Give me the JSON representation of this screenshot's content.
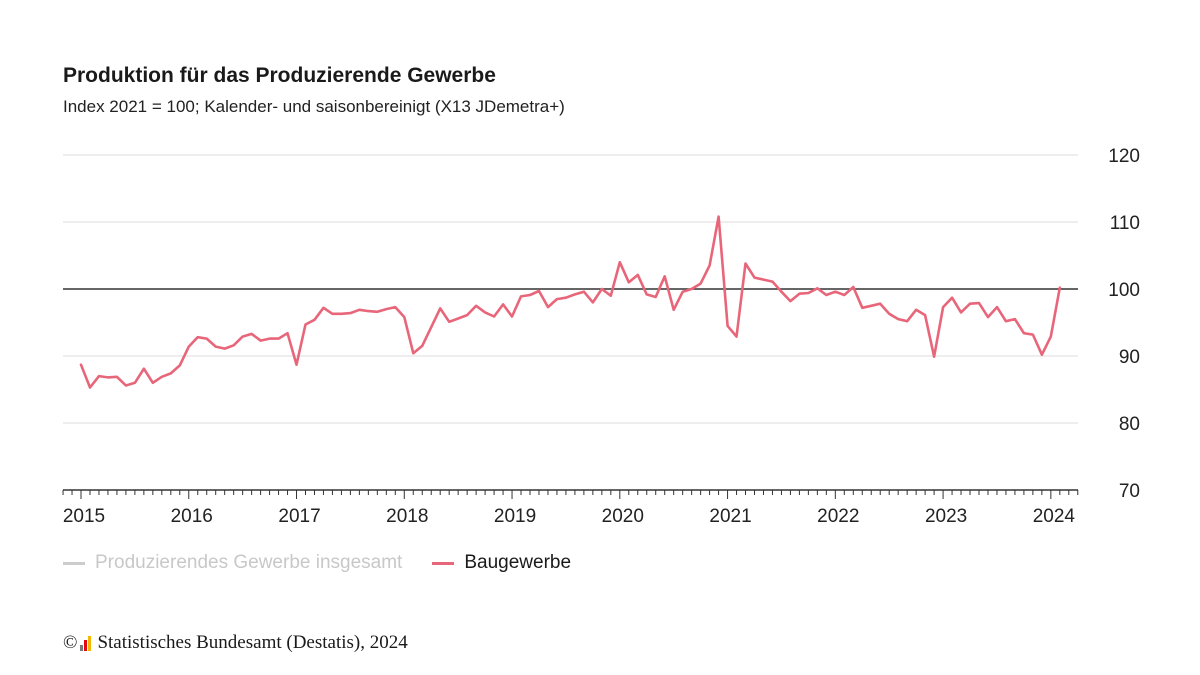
{
  "title": "Produktion für das Produzierende Gewerbe",
  "subtitle": "Index 2021 = 100; Kalender- und saisonbereinigt (X13 JDemetra+)",
  "legend": [
    {
      "label": "Produzierendes Gewerbe insgesamt",
      "color": "#cccccc",
      "state": "inactive"
    },
    {
      "label": "Baugewerbe",
      "color": "#e8667a",
      "state": "active"
    }
  ],
  "source": {
    "copyright": "©",
    "text": "Statistisches Bundesamt (Destatis), 2024",
    "logo_colors": [
      "#7a7a7a",
      "#e30613",
      "#f5b700"
    ]
  },
  "chart_data": {
    "type": "line",
    "title": "Produktion für das Produzierende Gewerbe",
    "subtitle": "Index 2021 = 100; Kalender- und saisonbereinigt (X13 JDemetra+)",
    "x_start": "2015-01",
    "x_end": "2024-02",
    "x_ticks": [
      "2015",
      "2016",
      "2017",
      "2018",
      "2019",
      "2020",
      "2021",
      "2022",
      "2023",
      "2024"
    ],
    "y_ticks": [
      70,
      80,
      90,
      100,
      110,
      120
    ],
    "ylim": [
      70,
      120
    ],
    "reference_line": 100,
    "y_axis_position": "right",
    "grid": true,
    "legend_position": "bottom-left",
    "series": [
      {
        "name": "Baugewerbe",
        "color": "#e8667a",
        "values": [
          88.7,
          85.3,
          87.0,
          86.8,
          86.9,
          85.6,
          86.0,
          88.1,
          86.0,
          86.9,
          87.4,
          88.6,
          91.4,
          92.8,
          92.6,
          91.4,
          91.1,
          91.6,
          92.9,
          93.3,
          92.3,
          92.6,
          92.6,
          93.4,
          88.7,
          94.7,
          95.4,
          97.2,
          96.3,
          96.3,
          96.4,
          96.9,
          96.7,
          96.6,
          97.0,
          97.3,
          95.8,
          90.4,
          91.5,
          94.3,
          97.1,
          95.1,
          95.6,
          96.1,
          97.5,
          96.5,
          95.9,
          97.7,
          95.9,
          98.9,
          99.1,
          99.7,
          97.3,
          98.5,
          98.7,
          99.2,
          99.6,
          98.0,
          100.0,
          99.0,
          104.0,
          101.0,
          102.1,
          99.2,
          98.8,
          101.9,
          96.9,
          99.6,
          100.0,
          100.8,
          103.5,
          110.8,
          94.5,
          92.9,
          103.8,
          101.7,
          101.4,
          101.1,
          99.6,
          98.2,
          99.3,
          99.4,
          100.1,
          99.1,
          99.6,
          99.1,
          100.3,
          97.2,
          97.5,
          97.8,
          96.3,
          95.5,
          95.2,
          96.9,
          96.1,
          89.9,
          97.3,
          98.7,
          96.5,
          97.8,
          97.9,
          95.8,
          97.3,
          95.2,
          95.5,
          93.4,
          93.2,
          90.2,
          92.9,
          100.2
        ]
      }
    ]
  }
}
